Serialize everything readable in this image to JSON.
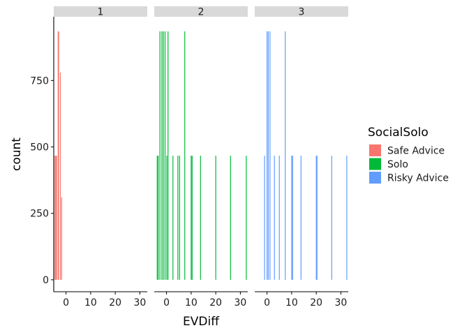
{
  "chart_data": {
    "type": "bar",
    "facet_var": "1/2/3",
    "xlabel": "EVDiff",
    "ylabel": "count",
    "x_ticks": [
      0,
      10,
      20,
      30
    ],
    "y_ticks": [
      0,
      250,
      500,
      750
    ],
    "xlim": [
      -5,
      33
    ],
    "ylim": [
      -45,
      990
    ],
    "legend": {
      "title": "SocialSolo",
      "position": "right",
      "entries": [
        {
          "label": "Safe Advice",
          "color": "#F8766D"
        },
        {
          "label": "Solo",
          "color": "#00BA38"
        },
        {
          "label": "Risky Advice",
          "color": "#619CFF"
        }
      ]
    },
    "panels": [
      {
        "label": "1",
        "series": "Safe Advice",
        "color": "#F8766D",
        "bars": [
          {
            "x": -4.5,
            "count": 467
          },
          {
            "x": -4.2,
            "count": 467
          },
          {
            "x": -3.8,
            "count": 467
          },
          {
            "x": -3.2,
            "count": 935
          },
          {
            "x": -3.0,
            "count": 935
          },
          {
            "x": -2.3,
            "count": 780
          },
          {
            "x": -1.8,
            "count": 310
          }
        ]
      },
      {
        "label": "2",
        "series": "Solo",
        "color": "#00BA38",
        "bars": [
          {
            "x": -3.8,
            "count": 467
          },
          {
            "x": -3.4,
            "count": 467
          },
          {
            "x": -2.7,
            "count": 935
          },
          {
            "x": -1.9,
            "count": 935
          },
          {
            "x": -1.3,
            "count": 935
          },
          {
            "x": -0.6,
            "count": 935
          },
          {
            "x": 0.1,
            "count": 467
          },
          {
            "x": 0.6,
            "count": 935
          },
          {
            "x": 2.6,
            "count": 467
          },
          {
            "x": 4.6,
            "count": 467
          },
          {
            "x": 5.3,
            "count": 467
          },
          {
            "x": 7.4,
            "count": 935
          },
          {
            "x": 10.0,
            "count": 467
          },
          {
            "x": 10.4,
            "count": 467
          },
          {
            "x": 13.8,
            "count": 467
          },
          {
            "x": 20.0,
            "count": 467
          },
          {
            "x": 26.0,
            "count": 467
          },
          {
            "x": 32.4,
            "count": 467
          }
        ]
      },
      {
        "label": "3",
        "series": "Risky Advice",
        "color": "#619CFF",
        "bars": [
          {
            "x": -1.0,
            "count": 467
          },
          {
            "x": 0.0,
            "count": 935
          },
          {
            "x": 0.5,
            "count": 935
          },
          {
            "x": 1.2,
            "count": 935
          },
          {
            "x": 3.0,
            "count": 467
          },
          {
            "x": 5.0,
            "count": 467
          },
          {
            "x": 7.4,
            "count": 935
          },
          {
            "x": 10.0,
            "count": 467
          },
          {
            "x": 10.4,
            "count": 467
          },
          {
            "x": 13.8,
            "count": 467
          },
          {
            "x": 20.0,
            "count": 467
          },
          {
            "x": 20.3,
            "count": 467
          },
          {
            "x": 26.3,
            "count": 467
          },
          {
            "x": 32.4,
            "count": 467
          }
        ]
      }
    ]
  }
}
